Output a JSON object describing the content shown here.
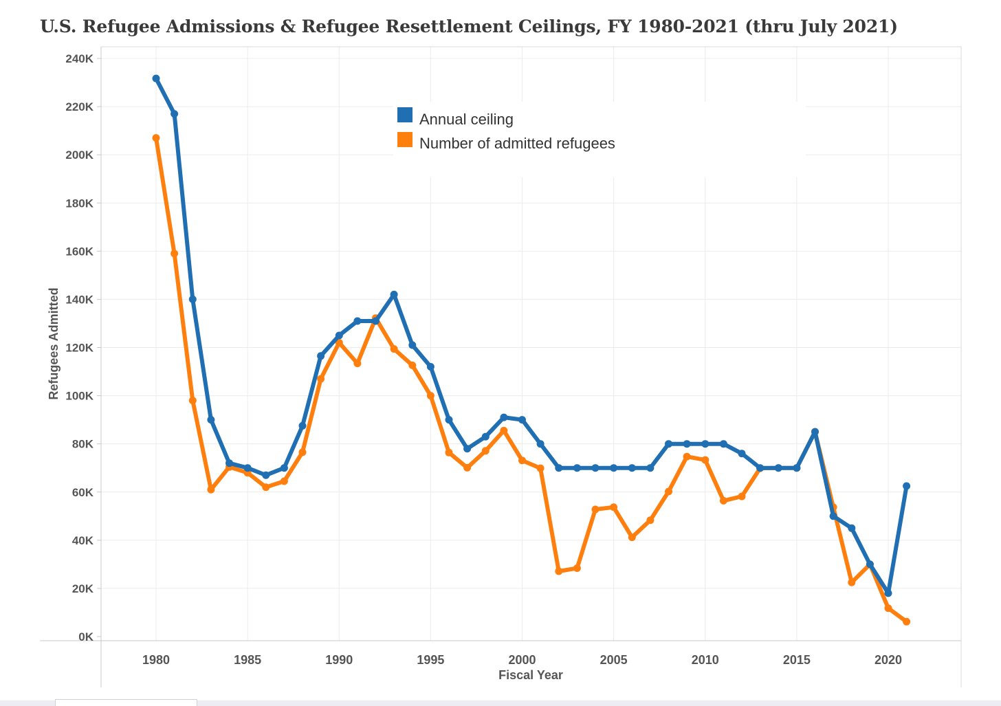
{
  "chart_data": {
    "type": "line",
    "title": "U.S. Refugee Admissions & Refugee Resettlement Ceilings, FY 1980-2021 (thru July 2021)",
    "xlabel": "Fiscal Year",
    "ylabel": "Refugees Admitted",
    "xlim": [
      1977,
      2025
    ],
    "ylim": [
      0,
      240000
    ],
    "x_ticks": [
      1980,
      1985,
      1990,
      1995,
      2000,
      2005,
      2010,
      2015,
      2020
    ],
    "x_tick_labels": [
      "1980",
      "1985",
      "1990",
      "1995",
      "2000",
      "2005",
      "2010",
      "2015",
      "2020"
    ],
    "y_ticks": [
      0,
      20000,
      40000,
      60000,
      80000,
      100000,
      120000,
      140000,
      160000,
      180000,
      200000,
      220000,
      240000
    ],
    "y_tick_labels": [
      "0K",
      "20K",
      "40K",
      "60K",
      "80K",
      "100K",
      "120K",
      "140K",
      "160K",
      "180K",
      "200K",
      "220K",
      "240K"
    ],
    "grid": true,
    "legend_position": "top-center",
    "x": [
      1980,
      1981,
      1982,
      1983,
      1984,
      1985,
      1986,
      1987,
      1988,
      1989,
      1990,
      1991,
      1992,
      1993,
      1994,
      1995,
      1996,
      1997,
      1998,
      1999,
      2000,
      2001,
      2002,
      2003,
      2004,
      2005,
      2006,
      2007,
      2008,
      2009,
      2010,
      2011,
      2012,
      2013,
      2014,
      2015,
      2016,
      2017,
      2018,
      2019,
      2020,
      2021
    ],
    "series": [
      {
        "name": "Annual ceiling",
        "color": "#1f6fb2",
        "values": [
          231700,
          217000,
          140000,
          90000,
          72000,
          70000,
          67000,
          70000,
          87500,
          116500,
          125000,
          131000,
          131000,
          142000,
          121000,
          112000,
          90000,
          78000,
          83000,
          91000,
          90000,
          80000,
          70000,
          70000,
          70000,
          70000,
          70000,
          70000,
          80000,
          80000,
          80000,
          80000,
          76000,
          70000,
          70000,
          70000,
          85000,
          50000,
          45000,
          30000,
          18000,
          62500
        ]
      },
      {
        "name": "Number of admitted refugees",
        "color": "#ff7f0e",
        "values": [
          207000,
          159000,
          98000,
          61000,
          70400,
          68000,
          62000,
          64500,
          76500,
          107000,
          122000,
          113400,
          132200,
          119400,
          112600,
          100000,
          76400,
          70100,
          77100,
          85500,
          73100,
          69900,
          27100,
          28400,
          52800,
          53700,
          41200,
          48300,
          60200,
          74700,
          73300,
          56400,
          58200,
          69900,
          70000,
          70000,
          85000,
          53700,
          22500,
          30000,
          11800,
          6200
        ]
      }
    ]
  }
}
